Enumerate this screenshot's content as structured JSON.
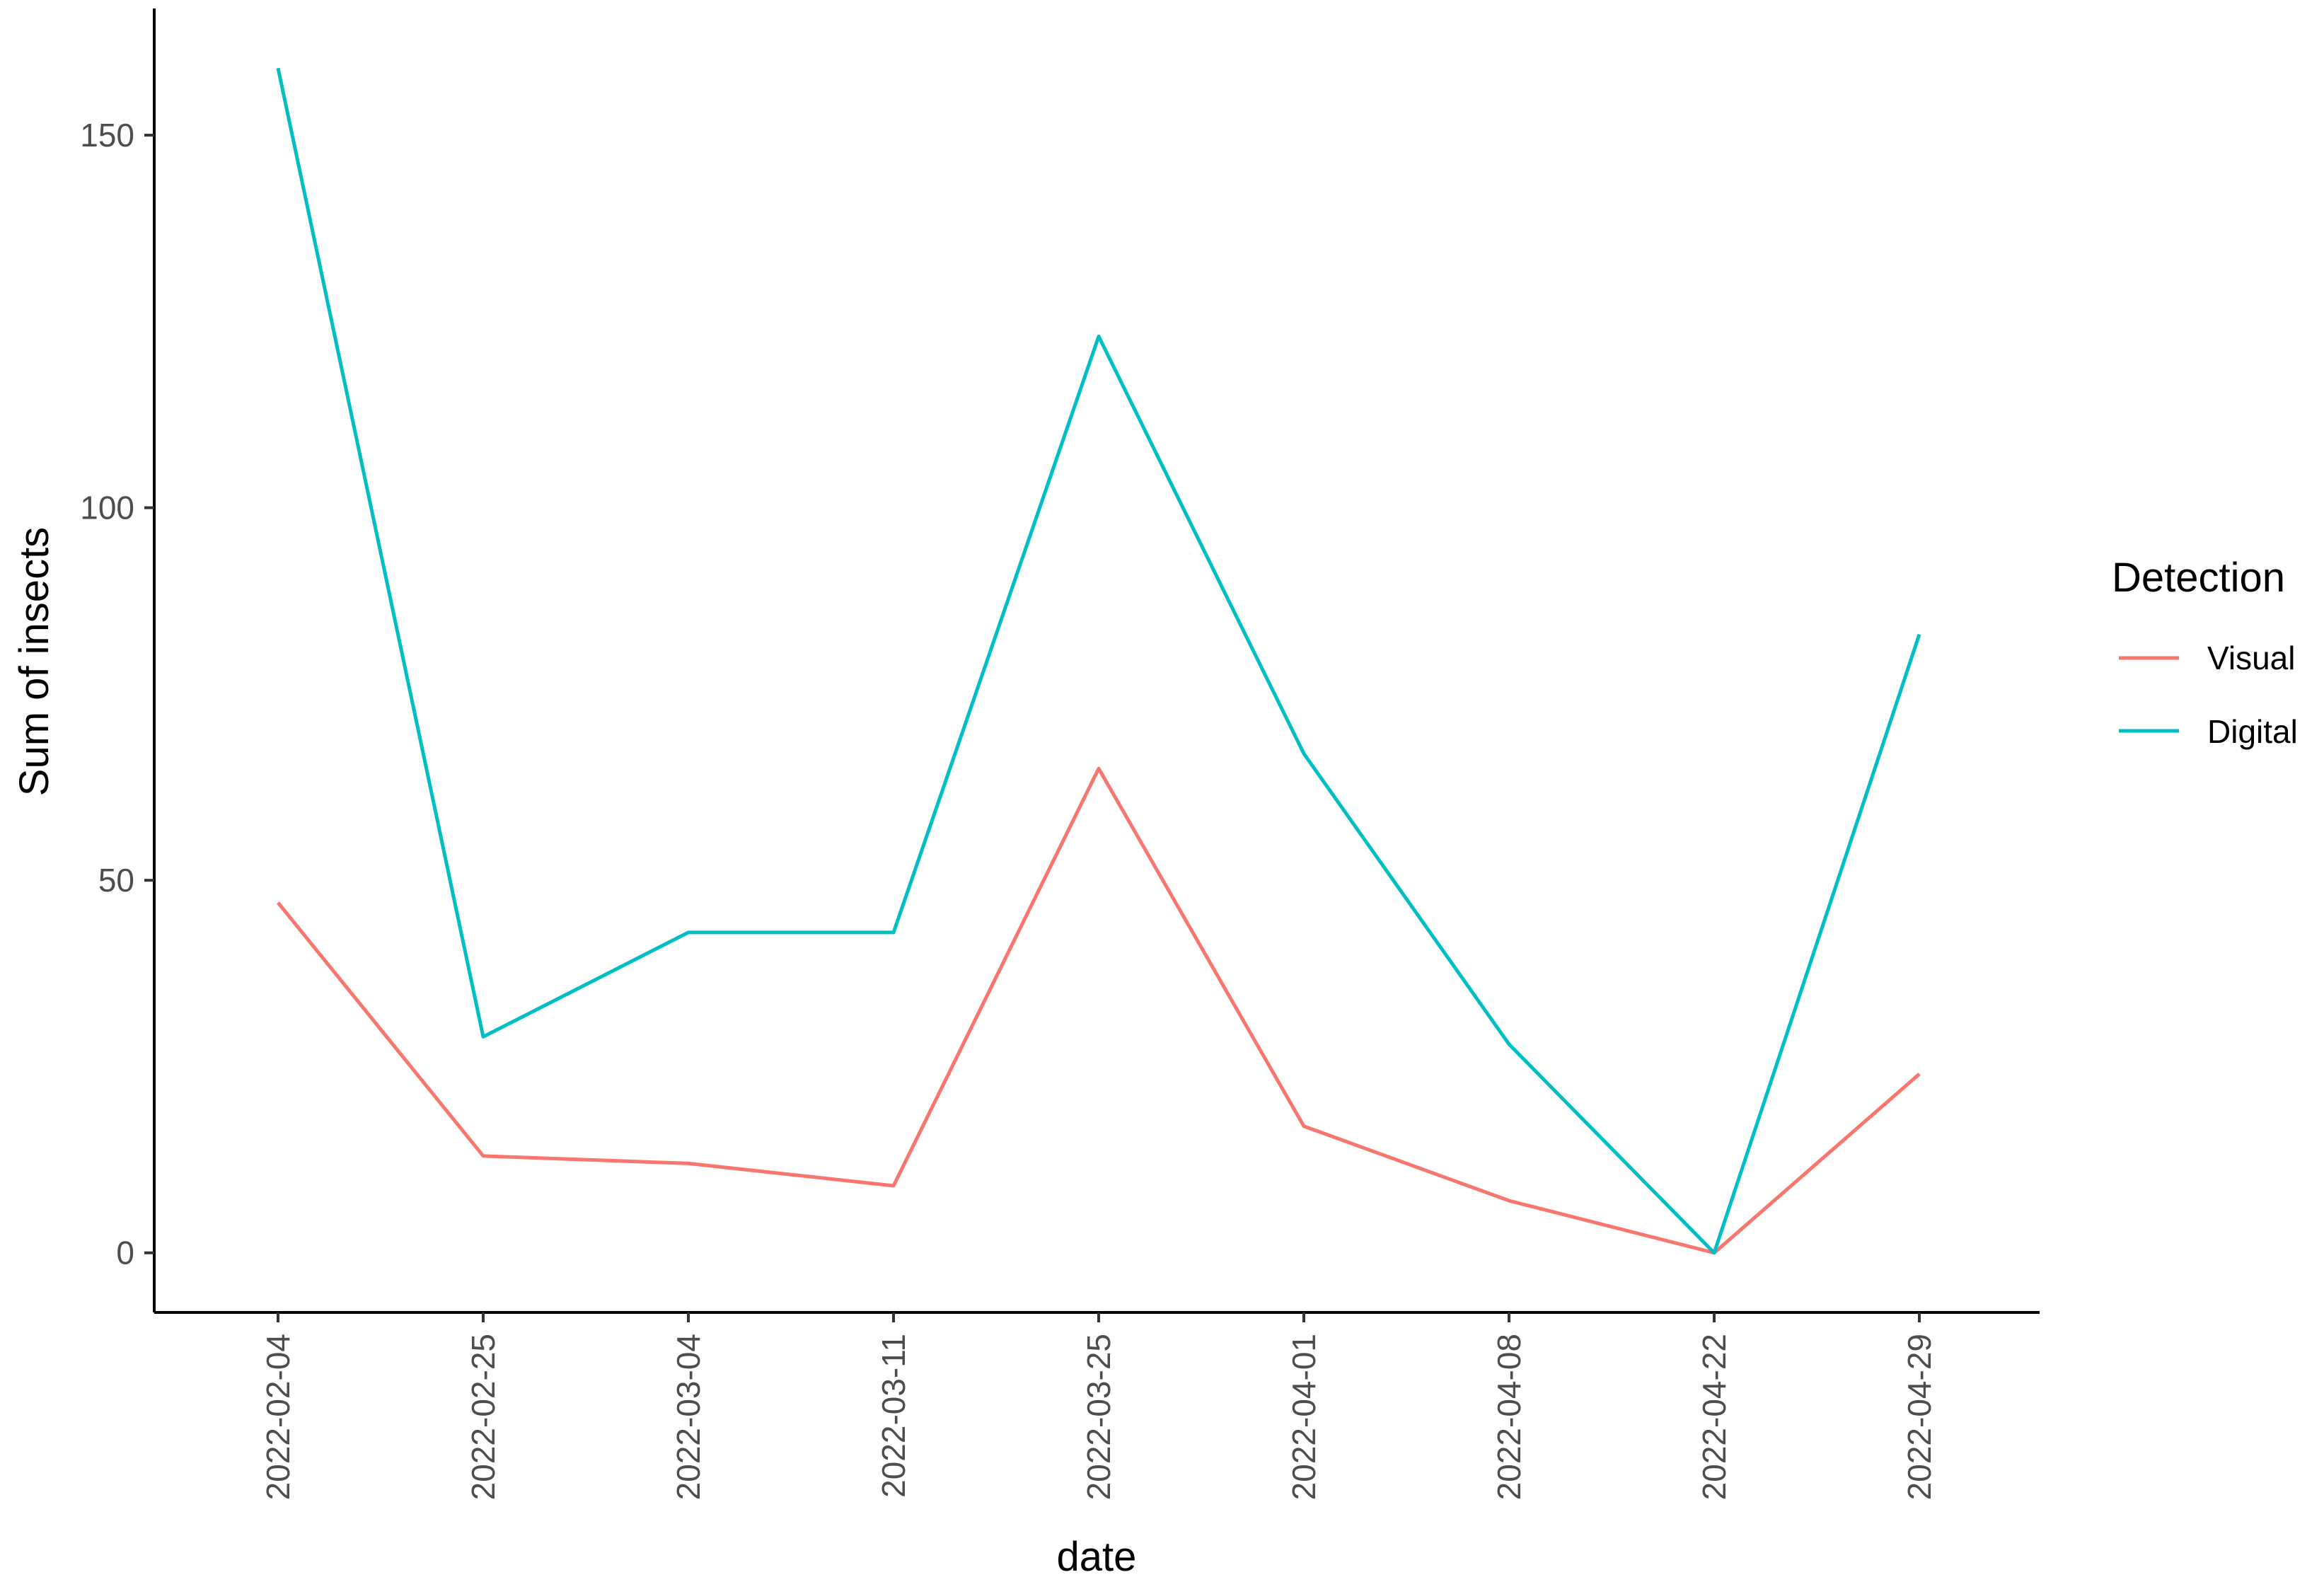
{
  "chart_data": {
    "type": "line",
    "title": "",
    "xlabel": "date",
    "ylabel": "Sum of insects",
    "categories": [
      "2022-02-04",
      "2022-02-25",
      "2022-03-04",
      "2022-03-11",
      "2022-03-25",
      "2022-04-01",
      "2022-04-08",
      "2022-04-22",
      "2022-04-29"
    ],
    "y_ticks": [
      0,
      50,
      100,
      150
    ],
    "ylim": [
      -8,
      167
    ],
    "grid": false,
    "legend": {
      "title": "Detection",
      "position": "right"
    },
    "series": [
      {
        "name": "Visual",
        "color": "#F8766D",
        "values": [
          47,
          13,
          12,
          9,
          65,
          17,
          7,
          0,
          24
        ]
      },
      {
        "name": "Digital",
        "color": "#00BFC4",
        "values": [
          159,
          29,
          43,
          43,
          123,
          67,
          28,
          0,
          83
        ]
      }
    ]
  }
}
